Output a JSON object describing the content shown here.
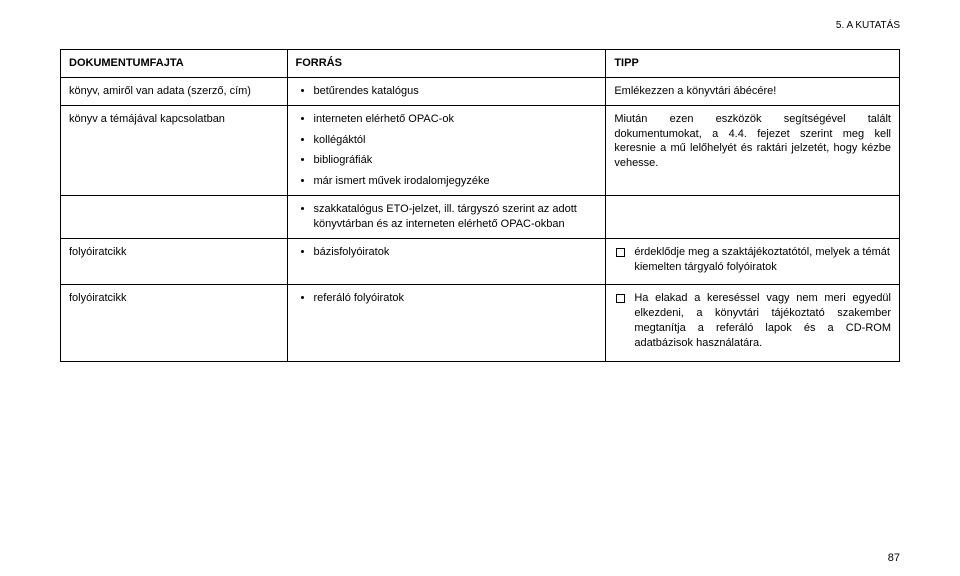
{
  "header": {
    "section": "5. A KUTATÁS"
  },
  "table": {
    "columns": [
      "DOKUMENTUMFAJTA",
      "FORRÁS",
      "TIPP"
    ],
    "rows": [
      {
        "col1": "könyv, amiről van adata (szerző, cím)",
        "col2_items": [
          "betűrendes katalógus"
        ],
        "col3": "Emlékezzen a könyvtári ábécére!"
      },
      {
        "col1": "könyv a témájával kapcsolatban",
        "col2_items": [
          "interneten elérhető OPAC-ok",
          "kollégáktól",
          "bibliográfiák",
          "már ismert művek irodalomjegyzéke"
        ],
        "col3": "Miután ezen eszközök segítségével talált dokumentumokat, a 4.4. fejezet szerint meg kell keresnie a mű lelőhelyét és raktári jelzetét, hogy kézbe vehesse."
      },
      {
        "col1": "",
        "col2_items": [
          "szakkatalógus ETO-jelzet, ill. tárgyszó szerint az adott könyvtárban és az interneten elérhető OPAC-okban"
        ],
        "col3": ""
      },
      {
        "col1": "folyóiratcikk",
        "col2_items": [
          "bázisfolyóiratok"
        ],
        "col3_checks": [
          "érdeklődje meg a szaktájékoztatótól, melyek a témát kiemelten tárgyaló folyóiratok"
        ]
      },
      {
        "col1": "folyóiratcikk",
        "col2_items": [
          "referáló folyóiratok"
        ],
        "col3_checks": [
          "Ha elakad a kereséssel vagy nem meri egyedül elkezdeni, a könyvtári tájékoztató szakember megtanítja a referáló lapok és a CD-ROM adatbázisok használatára."
        ]
      }
    ]
  },
  "pagenum": "87"
}
